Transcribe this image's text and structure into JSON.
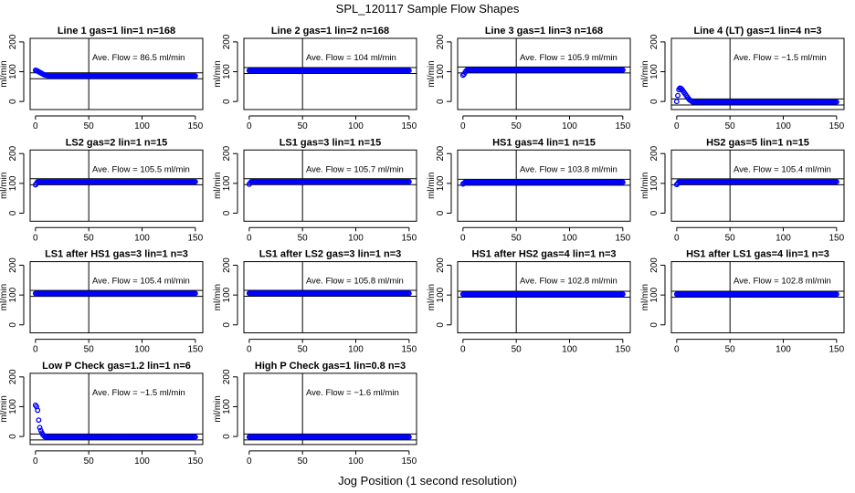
{
  "chart_data": {
    "type": "scatter",
    "title": "SPL_120117  Sample Flow Shapes",
    "xlabel": "Jog Position (1 second resolution)",
    "ylabel": "ml/min",
    "xlim": [
      -5,
      157
    ],
    "ylim": [
      -27,
      212
    ],
    "x_ticks": [
      0,
      50,
      100,
      150
    ],
    "y_ticks": [
      0,
      100,
      200
    ],
    "x_range": [
      0,
      150
    ],
    "vertical_reference_x": 50,
    "band_halfwidth": 10,
    "point_color": "#0000ff",
    "marker": "open-circle",
    "panels": [
      {
        "title": "Line 1 gas=1 lin=1 n=168",
        "annotation": "Ave. Flow =  86.5  ml/min",
        "ave": 86.5,
        "initial_values": [
          105,
          104,
          102,
          100,
          98,
          96,
          94,
          92,
          90,
          89,
          88,
          87
        ],
        "steady_value": 86
      },
      {
        "title": "Line 2 gas=1 lin=2 n=168",
        "annotation": "Ave. Flow =  104  ml/min",
        "ave": 104,
        "initial_values": [],
        "steady_value": 104
      },
      {
        "title": "Line 3 gas=1 lin=3 n=168",
        "annotation": "Ave. Flow =  105.9  ml/min",
        "ave": 105.9,
        "initial_values": [
          88,
          92,
          98,
          103
        ],
        "steady_value": 105.9
      },
      {
        "title": "Line 4 (LT) gas=1 lin=4 n=3",
        "annotation": "Ave. Flow =  −1.5  ml/min",
        "ave": -1.5,
        "initial_values": [
          0,
          20,
          40,
          45,
          44,
          40,
          35,
          30,
          25,
          20,
          15,
          10,
          6,
          3,
          1
        ],
        "steady_value": -1.5
      },
      {
        "title": "LS2 gas=2 lin=1 n=15",
        "annotation": "Ave. Flow =  105.5  ml/min",
        "ave": 105.5,
        "initial_values": [
          95,
          100
        ],
        "steady_value": 105.5
      },
      {
        "title": "LS1 gas=3 lin=1 n=15",
        "annotation": "Ave. Flow =  105.7  ml/min",
        "ave": 105.7,
        "initial_values": [
          97,
          102
        ],
        "steady_value": 105.7
      },
      {
        "title": "HS1 gas=4 lin=1 n=15",
        "annotation": "Ave. Flow =  103.8  ml/min",
        "ave": 103.8,
        "initial_values": [
          98,
          101
        ],
        "steady_value": 103.8
      },
      {
        "title": "HS2 gas=5 lin=1 n=15",
        "annotation": "Ave. Flow =  105.4  ml/min",
        "ave": 105.4,
        "initial_values": [
          96,
          100
        ],
        "steady_value": 105.4
      },
      {
        "title": "LS1 after HS1 gas=3 lin=1 n=3",
        "annotation": "Ave. Flow =  105.4  ml/min",
        "ave": 105.4,
        "initial_values": [],
        "steady_value": 105.4
      },
      {
        "title": "LS1 after LS2 gas=3 lin=1 n=3",
        "annotation": "Ave. Flow =  105.8  ml/min",
        "ave": 105.8,
        "initial_values": [],
        "steady_value": 105.8
      },
      {
        "title": "HS1 after HS2 gas=4 lin=1 n=3",
        "annotation": "Ave. Flow =  102.8  ml/min",
        "ave": 102.8,
        "initial_values": [],
        "steady_value": 102.8
      },
      {
        "title": "HS1 after LS1 gas=4 lin=1 n=3",
        "annotation": "Ave. Flow =  102.8  ml/min",
        "ave": 102.8,
        "initial_values": [],
        "steady_value": 102.8
      },
      {
        "title": "Low P Check gas=1.2 lin=1 n=6",
        "annotation": "Ave. Flow =  −1.5  ml/min",
        "ave": -1.5,
        "initial_values": [
          105,
          100,
          88,
          55,
          30,
          20,
          12,
          6,
          2
        ],
        "steady_value": -1.5
      },
      {
        "title": "High P Check gas=1 lin=0.8 n=3",
        "annotation": "Ave. Flow =  −1.6  ml/min",
        "ave": -1.6,
        "initial_values": [],
        "steady_value": -1.6
      }
    ]
  }
}
